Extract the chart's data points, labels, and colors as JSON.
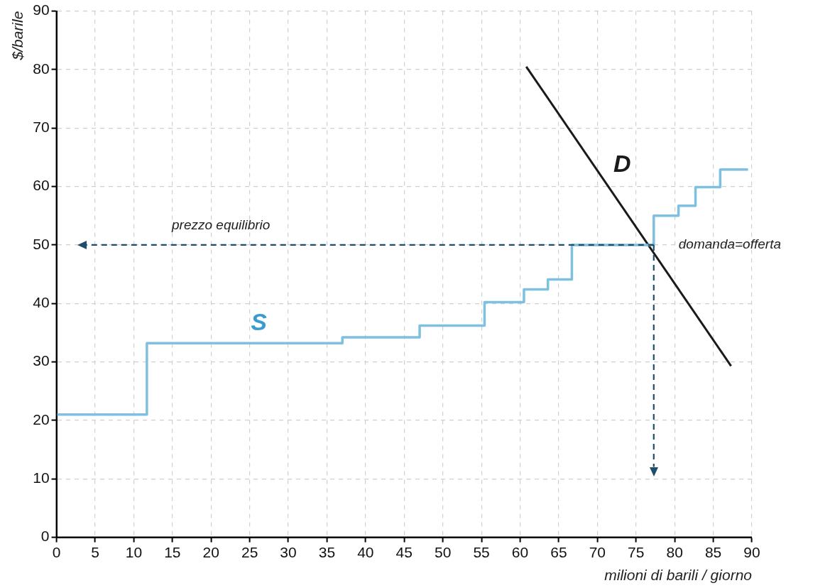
{
  "chart_data": {
    "type": "line",
    "xlabel": "milioni di barili / giorno",
    "ylabel": "$/barile",
    "xlim": [
      0,
      90
    ],
    "xticks": [
      0,
      5,
      10,
      15,
      20,
      25,
      30,
      35,
      40,
      45,
      50,
      55,
      60,
      65,
      70,
      75,
      80,
      85,
      90
    ],
    "ylim": [
      0,
      90
    ],
    "yticks": [
      0,
      10,
      20,
      30,
      40,
      50,
      60,
      70,
      80,
      90
    ],
    "grid": true,
    "legend": false,
    "marker": "none",
    "series": [
      {
        "name": "S",
        "type": "step",
        "color": "#7fbfdf",
        "x": [
          0,
          11.7,
          37,
          47,
          55.4,
          60.5,
          63.6,
          66.7,
          77.3,
          80.5,
          82.7,
          85.9,
          89.5
        ],
        "values": [
          21,
          33.2,
          34.2,
          36.2,
          40.2,
          42.4,
          44.1,
          50,
          55,
          56.7,
          59.9,
          62.9,
          62.9
        ]
      },
      {
        "name": "D",
        "type": "line",
        "color": "#1a1a1a",
        "x": [
          60.8,
          87.3
        ],
        "values": [
          80.5,
          29.3
        ]
      }
    ],
    "ref_lines": [
      {
        "axis": "y",
        "value": 50,
        "label": "prezzo equilibrio",
        "color": "#1f4e6b",
        "line_style": "dashed"
      },
      {
        "axis": "x",
        "value": 77.3,
        "color": "#1f4e6b",
        "line_style": "dashed"
      }
    ],
    "annotations": [
      "domanda=offerta"
    ]
  }
}
